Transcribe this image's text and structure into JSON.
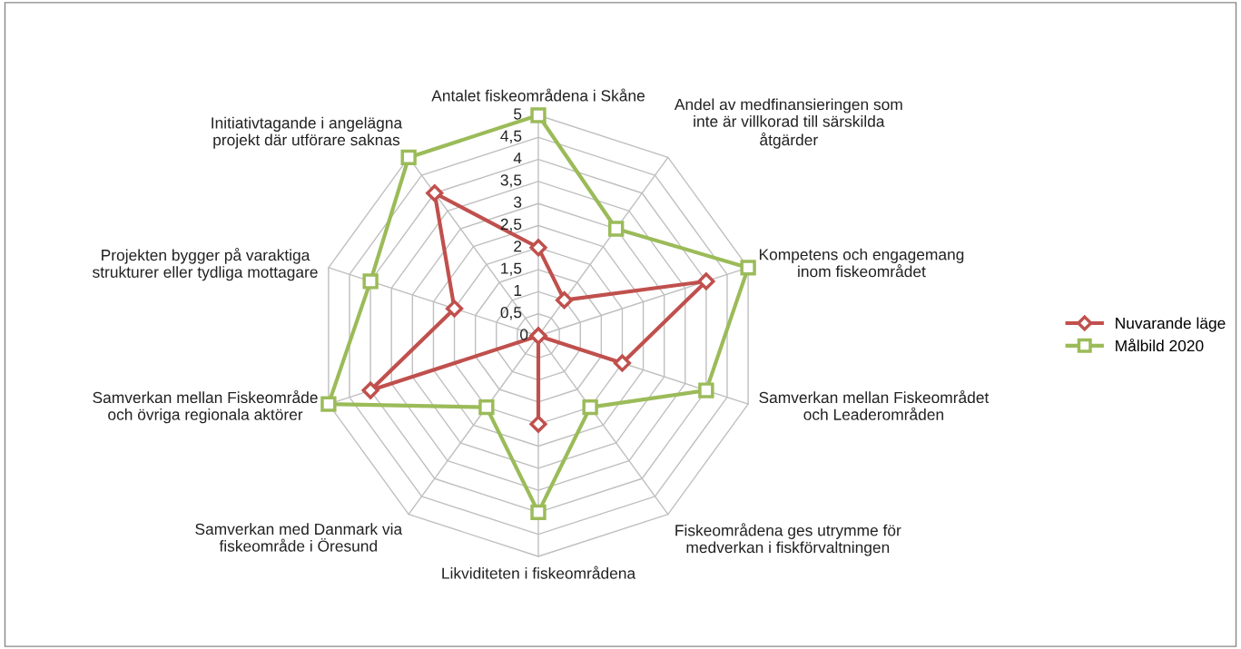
{
  "chart_data": {
    "type": "radar",
    "categories": [
      "Antalet fiskeområdena i Skåne",
      "Andel av medfinansieringen som\ninte är villkorad till särskilda\nåtgärder",
      "Kompetens och engagemang\ninom fiskeområdet",
      "Samverkan mellan Fiskeområdet\noch Leaderområden",
      "Fiskeområdena ges utrymme för\nmedverkan i fiskförvaltningen",
      "Likviditeten i fiskeområdena",
      "Samverkan med Danmark via\nfiskeområde i Öresund",
      "Samverkan mellan Fiskeområde\noch övriga regionala aktörer",
      "Projekten bygger på varaktiga\nstrukturer eller tydliga mottagare",
      "Initiativtagande i angelägna\nprojekt där utförare saknas"
    ],
    "series": [
      {
        "name": "Nuvarande läge",
        "color": "#c0504d",
        "marker": "diamond",
        "values": [
          2,
          1,
          4,
          2,
          0,
          2,
          0,
          4,
          2,
          4
        ]
      },
      {
        "name": "Målbild 2020",
        "color": "#9bbb59",
        "marker": "square",
        "values": [
          5,
          3,
          5,
          4,
          2,
          4,
          2,
          5,
          4,
          5
        ]
      }
    ],
    "ylim": [
      0,
      5
    ],
    "yticks": [
      0,
      {
        "value": 0.5,
        "label": "0,5"
      },
      1,
      {
        "value": 1.5,
        "label": "1,5"
      },
      2,
      {
        "value": 2.5,
        "label": "2,5"
      },
      3,
      {
        "value": 3.5,
        "label": "3,5"
      },
      4,
      {
        "value": 4.5,
        "label": "4,5"
      },
      5
    ],
    "grid": true,
    "legend": "right"
  }
}
